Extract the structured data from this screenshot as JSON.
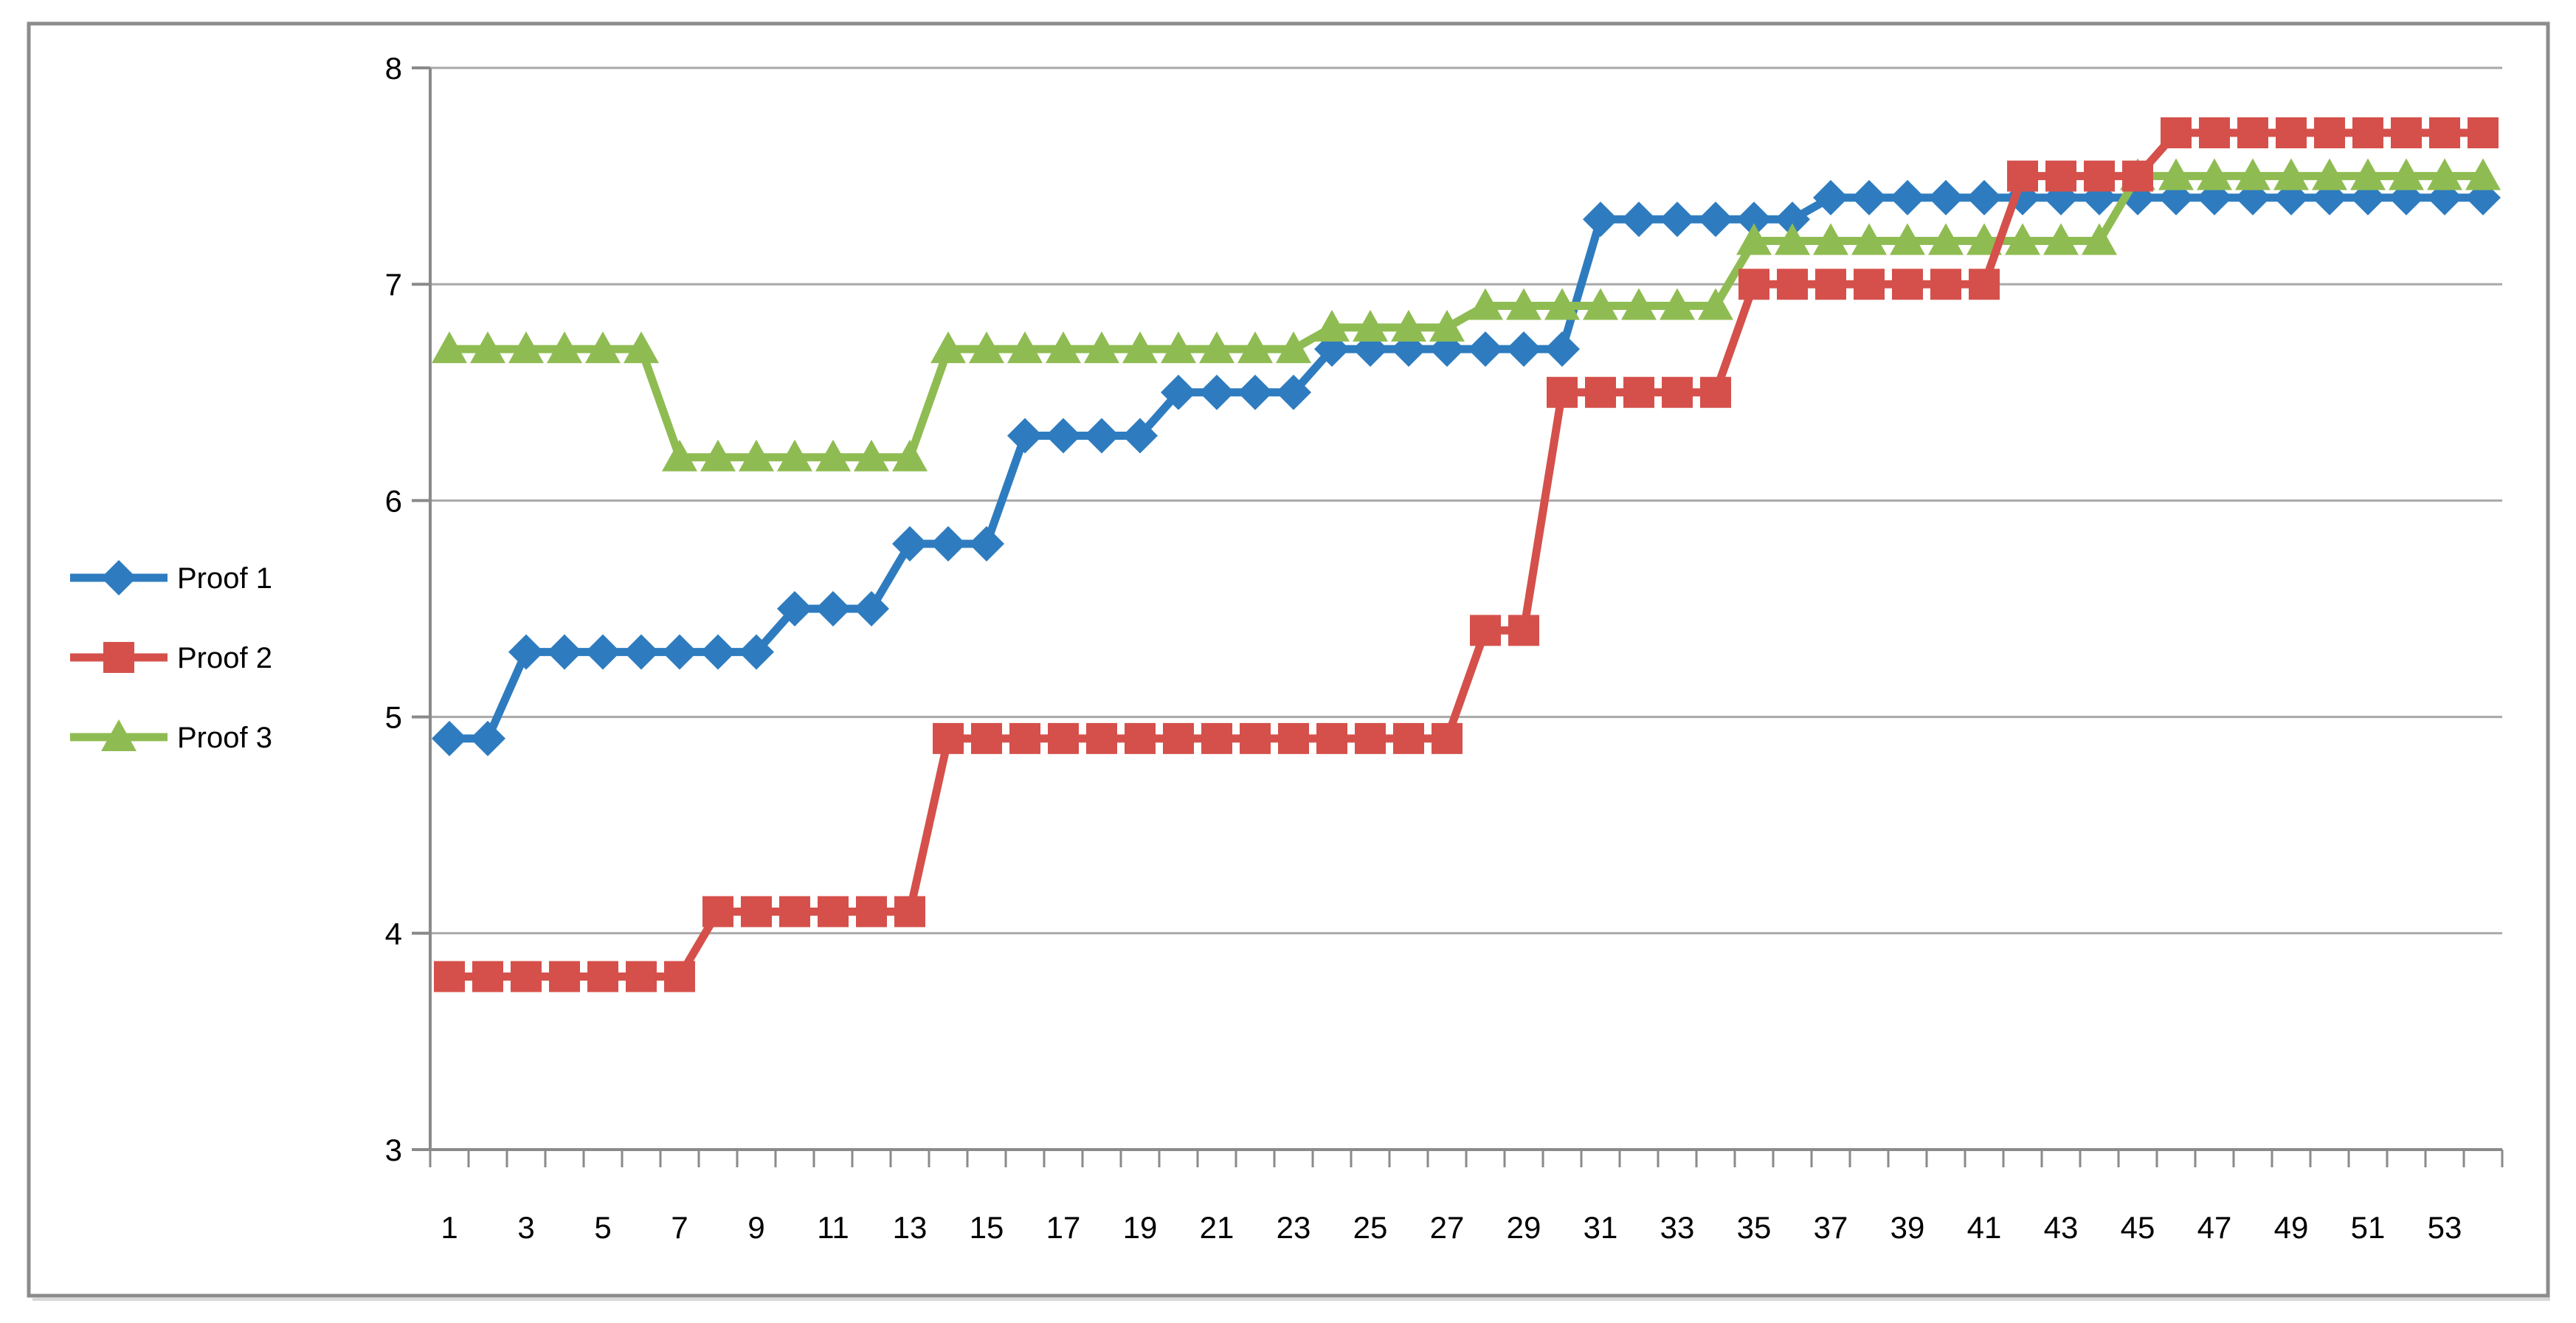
{
  "chart_data": {
    "type": "line",
    "title": "",
    "xlabel": "",
    "ylabel": "",
    "ylim": [
      3,
      8
    ],
    "yticks": [
      3,
      4,
      5,
      6,
      7,
      8
    ],
    "x": [
      1,
      2,
      3,
      4,
      5,
      6,
      7,
      8,
      9,
      10,
      11,
      12,
      13,
      14,
      15,
      16,
      17,
      18,
      19,
      20,
      21,
      22,
      23,
      24,
      25,
      26,
      27,
      28,
      29,
      30,
      31,
      32,
      33,
      34,
      35,
      36,
      37,
      38,
      39,
      40,
      41,
      42,
      43,
      44,
      45,
      46,
      47,
      48,
      49,
      50,
      51,
      52,
      53,
      54
    ],
    "x_tick_labels": [
      "1",
      "3",
      "5",
      "7",
      "9",
      "11",
      "13",
      "15",
      "17",
      "19",
      "21",
      "23",
      "25",
      "27",
      "29",
      "31",
      "33",
      "35",
      "37",
      "39",
      "41",
      "43",
      "45",
      "47",
      "49",
      "51",
      "53"
    ],
    "grid": "horizontal",
    "legend_position": "middle-left",
    "series": [
      {
        "name": "Proof 1",
        "marker": "diamond",
        "color": "#2E7CBF",
        "values": [
          4.9,
          4.9,
          5.3,
          5.3,
          5.3,
          5.3,
          5.3,
          5.3,
          5.3,
          5.5,
          5.5,
          5.5,
          5.8,
          5.8,
          5.8,
          6.3,
          6.3,
          6.3,
          6.3,
          6.5,
          6.5,
          6.5,
          6.5,
          6.7,
          6.7,
          6.7,
          6.7,
          6.7,
          6.7,
          6.7,
          7.3,
          7.3,
          7.3,
          7.3,
          7.3,
          7.3,
          7.4,
          7.4,
          7.4,
          7.4,
          7.4,
          7.4,
          7.4,
          7.4,
          7.4,
          7.4,
          7.4,
          7.4,
          7.4,
          7.4,
          7.4,
          7.4,
          7.4,
          7.4
        ]
      },
      {
        "name": "Proof 2",
        "marker": "square",
        "color": "#D5504B",
        "values": [
          3.8,
          3.8,
          3.8,
          3.8,
          3.8,
          3.8,
          3.8,
          4.1,
          4.1,
          4.1,
          4.1,
          4.1,
          4.1,
          4.9,
          4.9,
          4.9,
          4.9,
          4.9,
          4.9,
          4.9,
          4.9,
          4.9,
          4.9,
          4.9,
          4.9,
          4.9,
          4.9,
          5.4,
          5.4,
          6.5,
          6.5,
          6.5,
          6.5,
          6.5,
          7.0,
          7.0,
          7.0,
          7.0,
          7.0,
          7.0,
          7.0,
          7.5,
          7.5,
          7.5,
          7.5,
          7.7,
          7.7,
          7.7,
          7.7,
          7.7,
          7.7,
          7.7,
          7.7,
          7.7
        ]
      },
      {
        "name": "Proof 3",
        "marker": "triangle",
        "color": "#8FBC52",
        "values": [
          6.7,
          6.7,
          6.7,
          6.7,
          6.7,
          6.7,
          6.2,
          6.2,
          6.2,
          6.2,
          6.2,
          6.2,
          6.2,
          6.7,
          6.7,
          6.7,
          6.7,
          6.7,
          6.7,
          6.7,
          6.7,
          6.7,
          6.7,
          6.8,
          6.8,
          6.8,
          6.8,
          6.9,
          6.9,
          6.9,
          6.9,
          6.9,
          6.9,
          6.9,
          7.2,
          7.2,
          7.2,
          7.2,
          7.2,
          7.2,
          7.2,
          7.2,
          7.2,
          7.2,
          7.5,
          7.5,
          7.5,
          7.5,
          7.5,
          7.5,
          7.5,
          7.5,
          7.5,
          7.5
        ]
      }
    ],
    "draw_order": [
      0,
      2,
      1
    ],
    "colors": {
      "gridline": "#A8A8A8",
      "axis": "#8A8A8A",
      "border": "#8C8C8C",
      "text": "#000000",
      "background": "#FFFFFF"
    }
  }
}
